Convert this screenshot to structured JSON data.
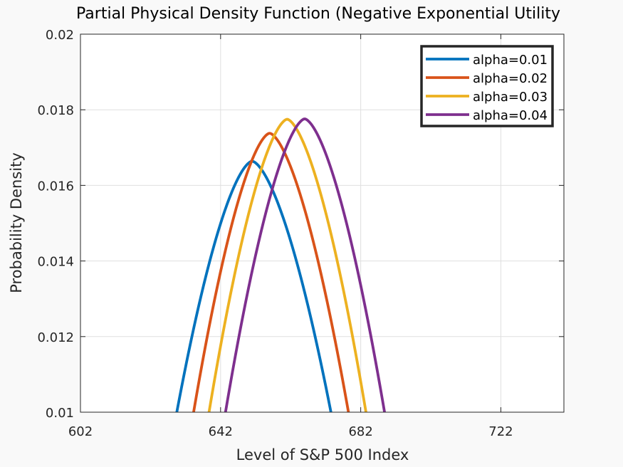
{
  "chart_data": {
    "type": "line",
    "title": "Partial Physical Density Function (Negative Exponential Utility",
    "xlabel": "Level of S&P 500 Index",
    "ylabel": "Probability Density",
    "xlim": [
      602,
      740
    ],
    "ylim": [
      0.01,
      0.02
    ],
    "xticks": [
      602,
      642,
      682,
      722
    ],
    "xtick_labels": [
      "602",
      "642",
      "682",
      "722"
    ],
    "yticks": [
      0.01,
      0.012,
      0.014,
      0.016,
      0.018,
      0.02
    ],
    "ytick_labels": [
      "0.01",
      "0.012",
      "0.014",
      "0.016",
      "0.018",
      "0.02"
    ],
    "grid": true,
    "legend_position": "top-right",
    "series": [
      {
        "name": "alpha=0.01",
        "color": "#0072BD",
        "x0": 629.5,
        "x1": 673.5,
        "peak_x": 651.0,
        "peak_y": 0.01664
      },
      {
        "name": "alpha=0.02",
        "color": "#D95319",
        "x0": 634.3,
        "x1": 678.5,
        "peak_x": 656.0,
        "peak_y": 0.01738
      },
      {
        "name": "alpha=0.03",
        "color": "#EDB120",
        "x0": 638.7,
        "x1": 683.5,
        "peak_x": 661.0,
        "peak_y": 0.01775
      },
      {
        "name": "alpha=0.04",
        "color": "#7E2F8E",
        "x0": 643.4,
        "x1": 688.8,
        "peak_x": 666.0,
        "peak_y": 0.01776
      }
    ]
  }
}
